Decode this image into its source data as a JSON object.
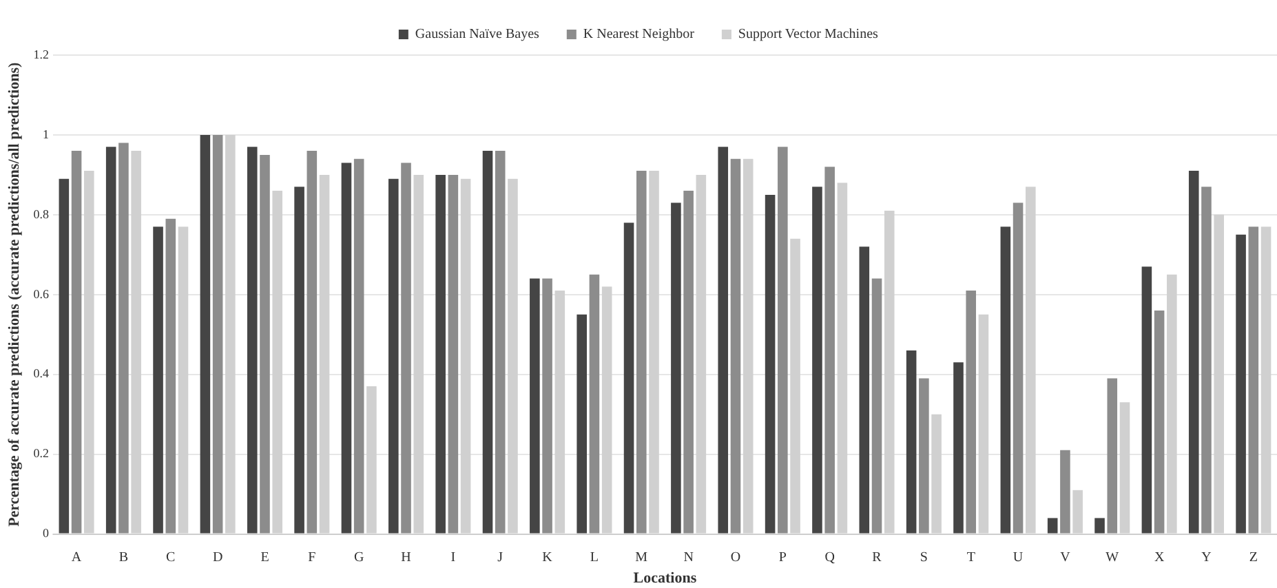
{
  "chart_data": {
    "type": "bar",
    "xlabel": "Locations",
    "ylabel": "Percentage of accurate predictions (accurate predictions/all predictions)",
    "categories": [
      "A",
      "B",
      "C",
      "D",
      "E",
      "F",
      "G",
      "H",
      "I",
      "J",
      "K",
      "L",
      "M",
      "N",
      "O",
      "P",
      "Q",
      "R",
      "S",
      "T",
      "U",
      "V",
      "W",
      "X",
      "Y",
      "Z"
    ],
    "series": [
      {
        "name": "Gaussian Naïve Bayes",
        "color": "#454545",
        "values": [
          0.89,
          0.97,
          0.77,
          1,
          0.97,
          0.87,
          0.93,
          0.89,
          0.9,
          0.96,
          0.64,
          0.55,
          0.78,
          0.83,
          0.97,
          0.85,
          0.87,
          0.72,
          0.46,
          0.43,
          0.77,
          0.04,
          0.04,
          0.67,
          0.91,
          0.75
        ]
      },
      {
        "name": "K Nearest Neighbor",
        "color": "#8c8c8c",
        "values": [
          0.96,
          0.98,
          0.79,
          1,
          0.95,
          0.96,
          0.94,
          0.93,
          0.9,
          0.96,
          0.64,
          0.65,
          0.91,
          0.86,
          0.94,
          0.97,
          0.92,
          0.64,
          0.39,
          0.61,
          0.83,
          0.21,
          0.39,
          0.56,
          0.87,
          0.77
        ]
      },
      {
        "name": "Support Vector Machines",
        "color": "#d0d0d0",
        "values": [
          0.91,
          0.96,
          0.77,
          1,
          0.86,
          0.9,
          0.37,
          0.9,
          0.89,
          0.89,
          0.61,
          0.62,
          0.91,
          0.9,
          0.94,
          0.74,
          0.88,
          0.81,
          0.3,
          0.55,
          0.87,
          0.11,
          0.33,
          0.65,
          0.8,
          0.77
        ]
      }
    ],
    "ylim": [
      0,
      1.2
    ],
    "yticks": [
      0,
      0.2,
      0.4,
      0.6,
      0.8,
      1,
      1.2
    ],
    "grid": "y",
    "legend": "top"
  }
}
